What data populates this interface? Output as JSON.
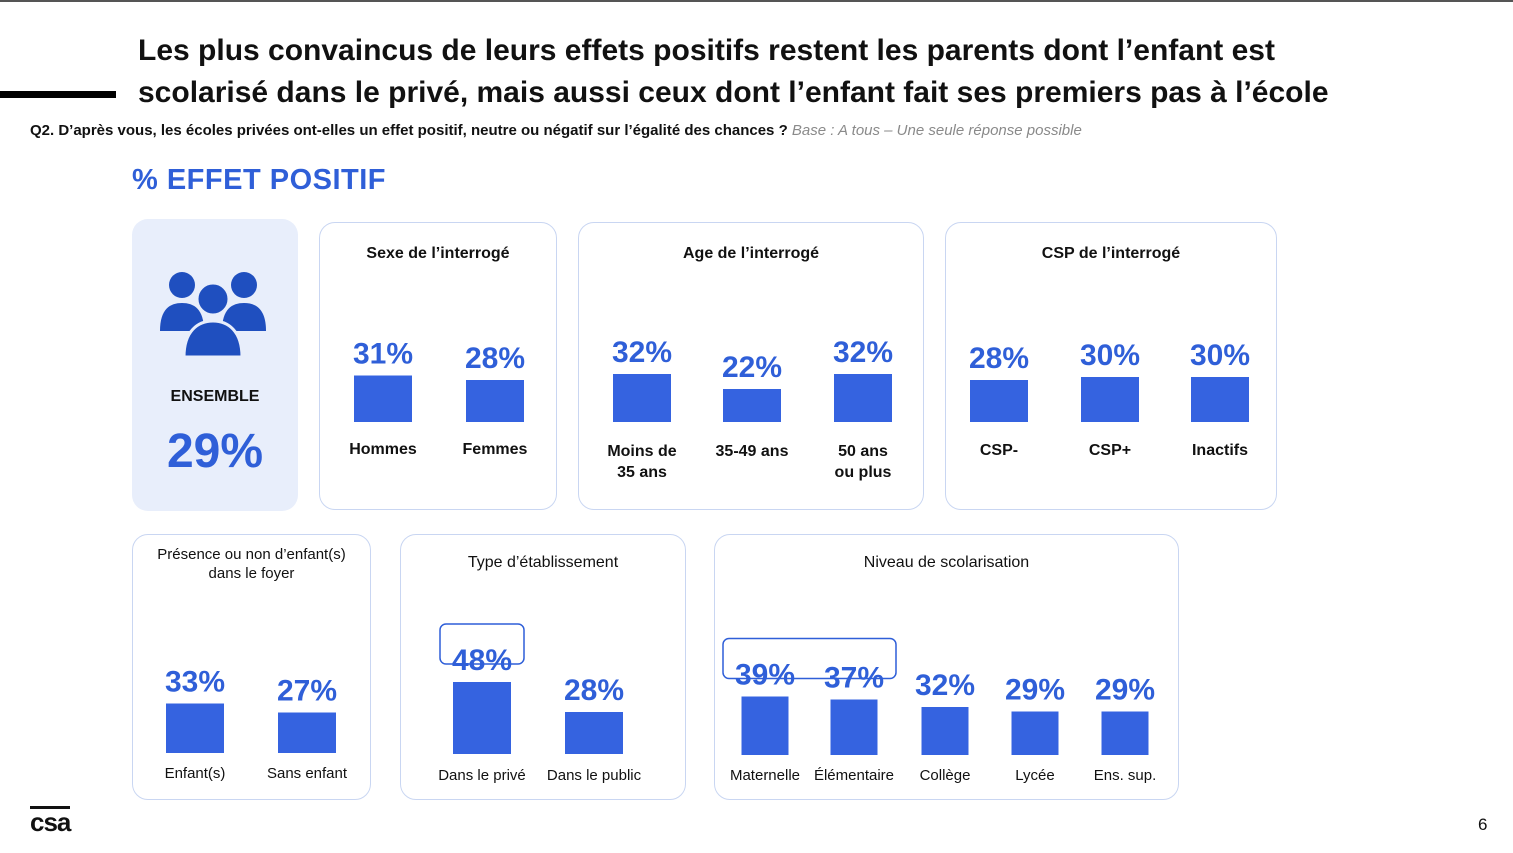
{
  "title": {
    "line1": "Les plus convaincus de leurs effets positifs restent les parents dont l’enfant est",
    "line2": "scolarisé dans le privé, mais aussi ceux dont l’enfant fait ses premiers pas à l’école"
  },
  "question": {
    "text": "Q2. D’après vous, les écoles privées ont-elles un effet positif, neutre ou négatif sur l’égalité des chances ?",
    "base": "Base : A tous – Une seule réponse possible"
  },
  "section_title": "% EFFET POSITIF",
  "ensemble": {
    "label": "ENSEMBLE",
    "value": "29%",
    "icon": "people-group-icon"
  },
  "colors": {
    "accent": "#2f5fd8",
    "bar": "#3563e0",
    "panel_border": "#c9d6f2",
    "ensemble_bg": "#e8eefb",
    "base_text": "#8a8a8a"
  },
  "chart_data": [
    {
      "type": "bar",
      "title": "Sexe de l’interrogé",
      "categories": [
        "Hommes",
        "Femmes"
      ],
      "values": [
        31,
        28
      ],
      "labels": [
        "31%",
        "28%"
      ],
      "highlighted": []
    },
    {
      "type": "bar",
      "title": "Age de l’interrogé",
      "categories": [
        "Moins de 35 ans",
        "35-49 ans",
        "50 ans ou plus"
      ],
      "values": [
        32,
        22,
        32
      ],
      "labels": [
        "32%",
        "22%",
        "32%"
      ],
      "highlighted": []
    },
    {
      "type": "bar",
      "title": "CSP de l’interrogé",
      "categories": [
        "CSP-",
        "CSP+",
        "Inactifs"
      ],
      "values": [
        28,
        30,
        30
      ],
      "labels": [
        "28%",
        "30%",
        "30%"
      ],
      "highlighted": []
    },
    {
      "type": "bar",
      "title": "Présence ou non d’enfant(s) dans le foyer",
      "categories": [
        "Enfant(s)",
        "Sans enfant"
      ],
      "values": [
        33,
        27
      ],
      "labels": [
        "33%",
        "27%"
      ],
      "highlighted": []
    },
    {
      "type": "bar",
      "title": "Type d’établissement",
      "categories": [
        "Dans le privé",
        "Dans le public"
      ],
      "values": [
        48,
        28
      ],
      "labels": [
        "48%",
        "28%"
      ],
      "highlighted": [
        0
      ]
    },
    {
      "type": "bar",
      "title": "Niveau de scolarisation",
      "categories": [
        "Maternelle",
        "Élémentaire",
        "Collège",
        "Lycée",
        "Ens. sup."
      ],
      "values": [
        39,
        37,
        32,
        29,
        29
      ],
      "labels": [
        "39%",
        "37%",
        "32%",
        "29%",
        "29%"
      ],
      "highlighted": [
        0,
        1
      ]
    }
  ],
  "logo": "csa",
  "page_number": "6"
}
